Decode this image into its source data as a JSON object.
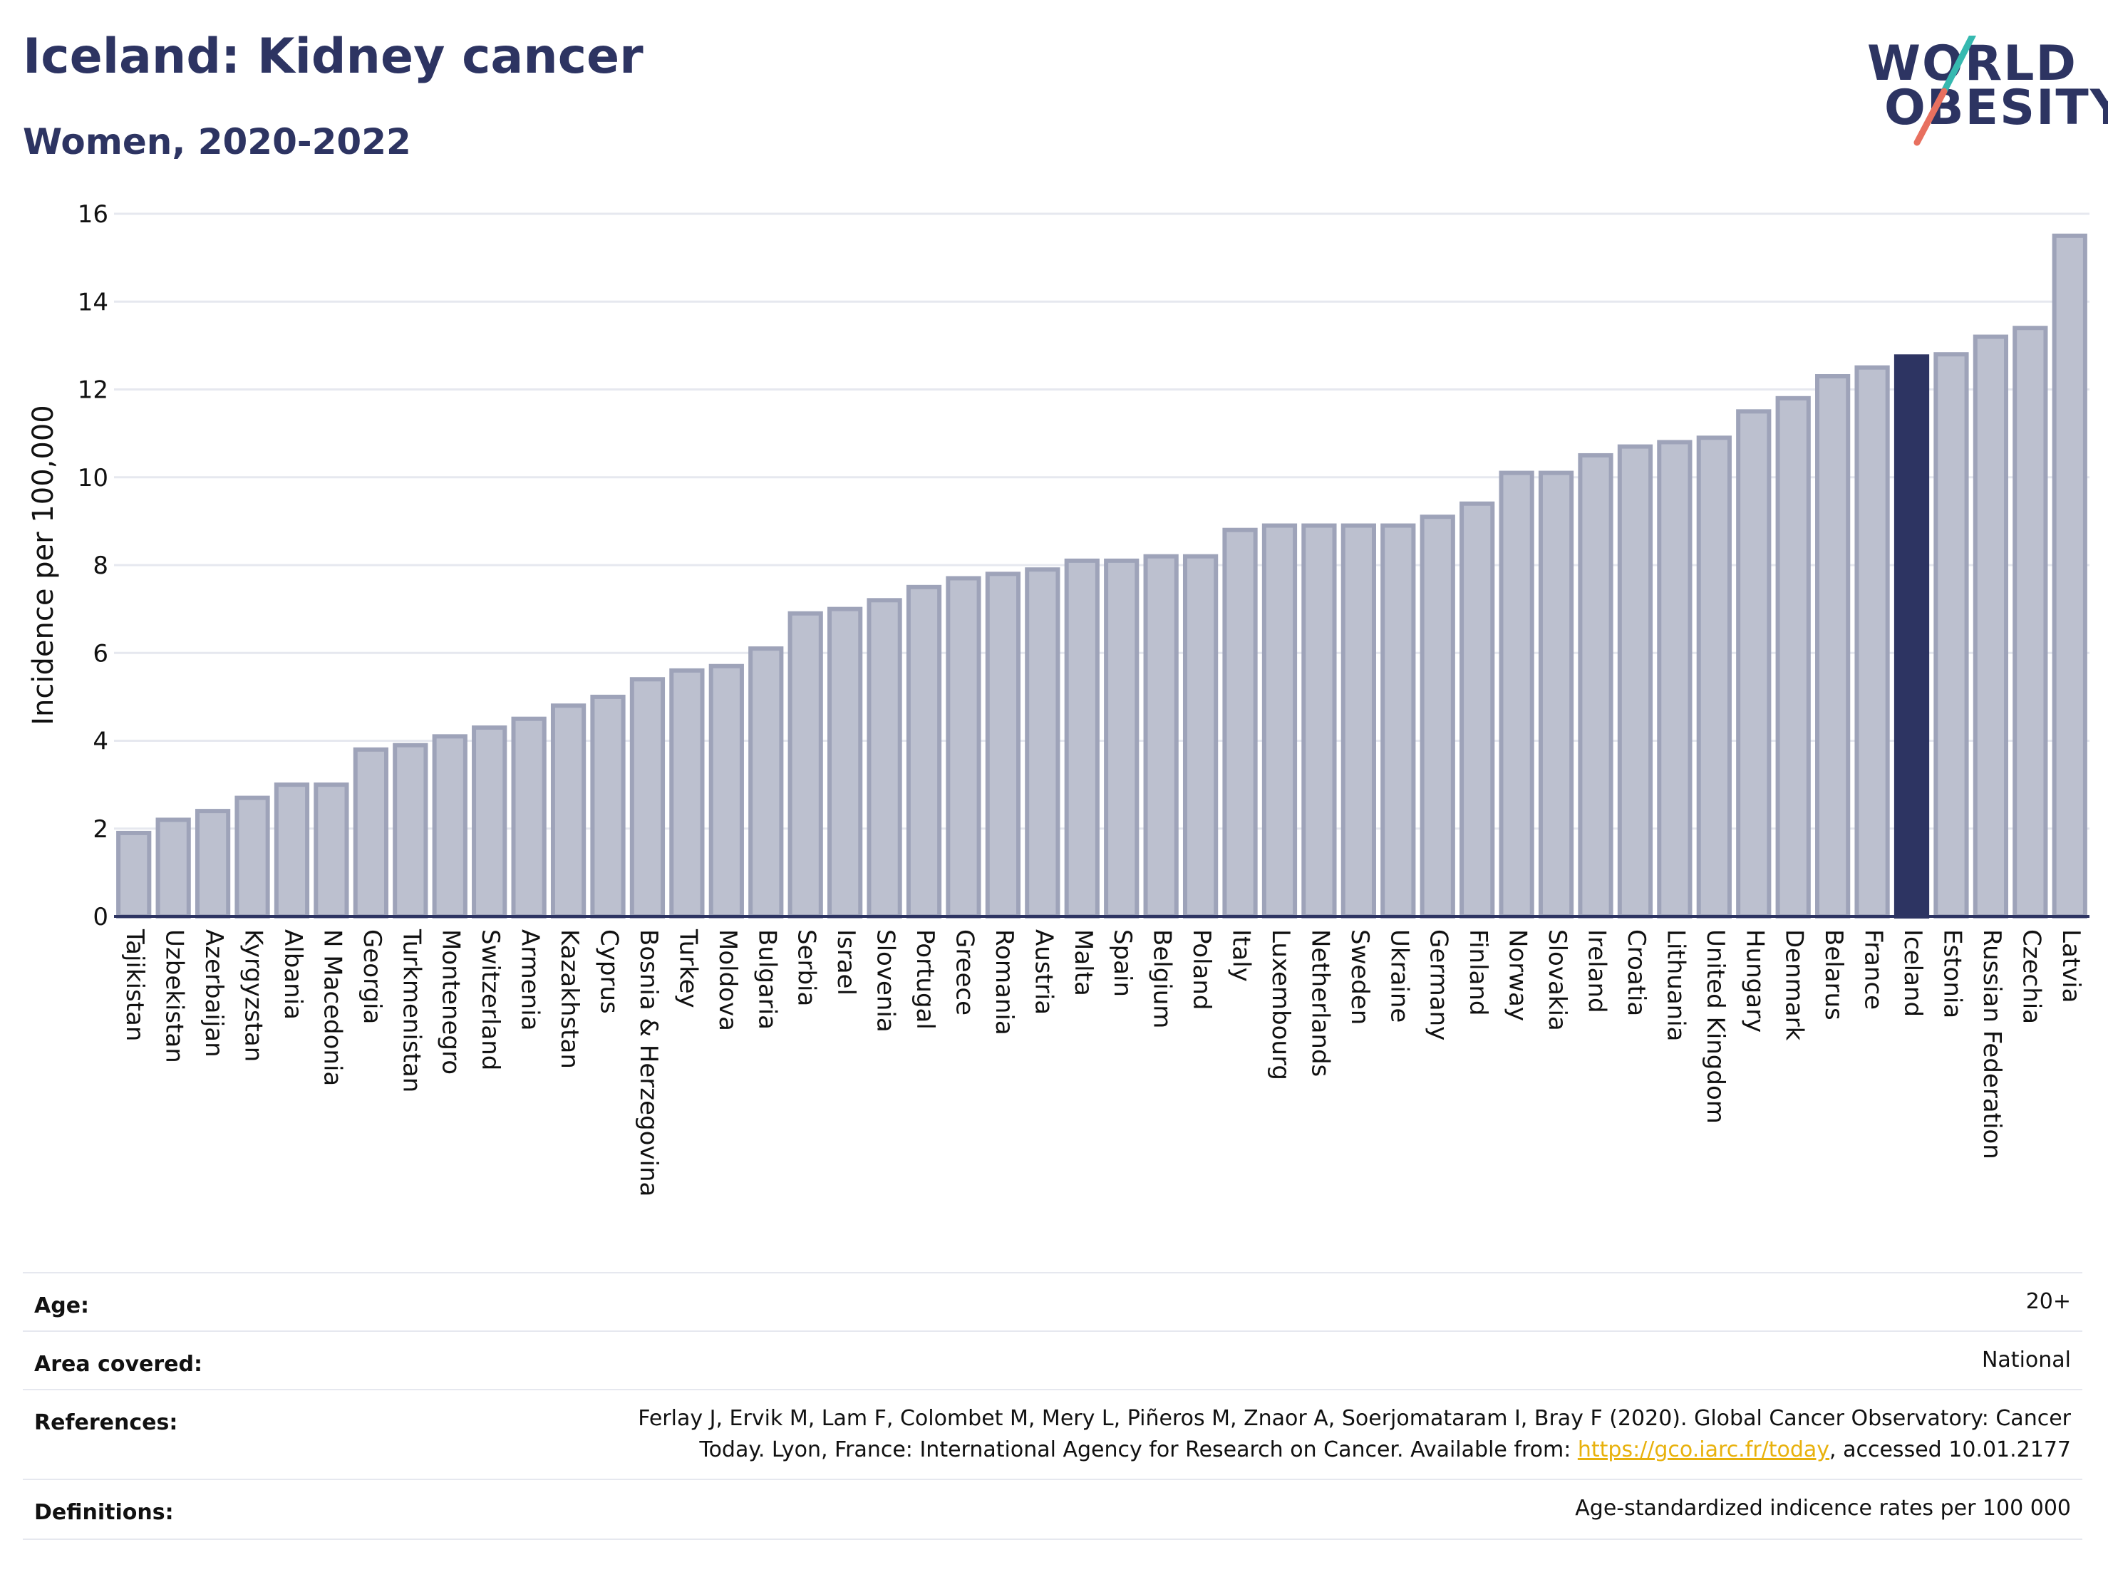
{
  "title": "Iceland: Kidney cancer",
  "subtitle": "Women, 2020-2022",
  "logo": {
    "line1": "WORLD",
    "line2": "OBESITY"
  },
  "chart_data": {
    "type": "bar",
    "ylabel": "Incidence per 100,000",
    "ylim": [
      0,
      16
    ],
    "yticks": [
      0,
      2,
      4,
      6,
      8,
      10,
      12,
      14,
      16
    ],
    "grid": true,
    "highlight": "Iceland",
    "colors": {
      "bar": "#bcc0cf",
      "bar_border": "#9ea3b9",
      "highlight": "#2d3462",
      "grid": "#e6e8ef",
      "axis": "#2d3462"
    },
    "categories": [
      "Tajikistan",
      "Uzbekistan",
      "Azerbaijan",
      "Kyrgyzstan",
      "Albania",
      "N Macedonia",
      "Georgia",
      "Turkmenistan",
      "Montenegro",
      "Switzerland",
      "Armenia",
      "Kazakhstan",
      "Cyprus",
      "Bosnia & Herzegovina",
      "Turkey",
      "Moldova",
      "Bulgaria",
      "Serbia",
      "Israel",
      "Slovenia",
      "Portugal",
      "Greece",
      "Romania",
      "Austria",
      "Malta",
      "Spain",
      "Belgium",
      "Poland",
      "Italy",
      "Luxembourg",
      "Netherlands",
      "Sweden",
      "Ukraine",
      "Germany",
      "Finland",
      "Norway",
      "Slovakia",
      "Ireland",
      "Croatia",
      "Lithuania",
      "United Kingdom",
      "Hungary",
      "Denmark",
      "Belarus",
      "France",
      "Iceland",
      "Estonia",
      "Russian Federation",
      "Czechia",
      "Latvia"
    ],
    "values": [
      1.9,
      2.2,
      2.4,
      2.7,
      3.0,
      3.0,
      3.8,
      3.9,
      4.1,
      4.3,
      4.5,
      4.8,
      5.0,
      5.4,
      5.6,
      5.7,
      6.1,
      6.9,
      7.0,
      7.2,
      7.5,
      7.7,
      7.8,
      7.9,
      8.1,
      8.1,
      8.2,
      8.2,
      8.8,
      8.9,
      8.9,
      8.9,
      8.9,
      9.1,
      9.4,
      10.1,
      10.1,
      10.5,
      10.7,
      10.8,
      10.9,
      11.5,
      11.8,
      12.3,
      12.5,
      12.75,
      12.8,
      13.2,
      13.4,
      15.5
    ]
  },
  "info": {
    "age_label": "Age:",
    "age_value": "20+",
    "area_label": "Area covered:",
    "area_value": "National",
    "references_label": "References:",
    "references_line1": "Ferlay J, Ervik M, Lam F, Colombet M, Mery L, Piñeros M, Znaor A, Soerjomataram I, Bray F (2020). Global Cancer Observatory: Cancer",
    "references_line2_pre": "Today. Lyon, France: International Agency for Research on Cancer. Available from: ",
    "references_link": "https://gco.iarc.fr/today",
    "references_line2_post": ", accessed 10.01.2177",
    "definitions_label": "Definitions:",
    "definitions_value": "Age-standardized indicence rates per 100 000"
  }
}
